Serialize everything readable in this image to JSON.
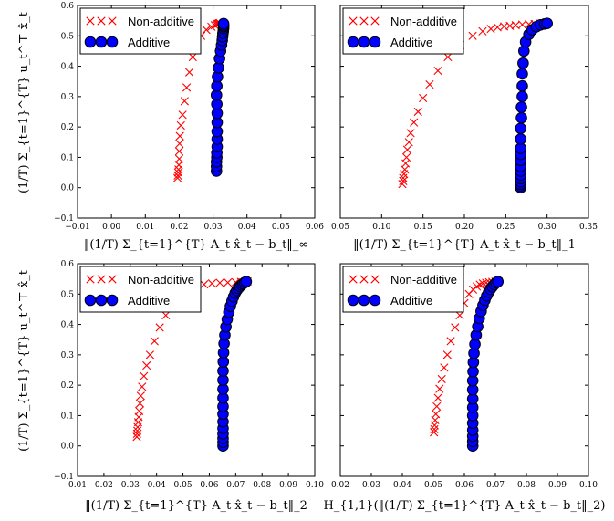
{
  "chart_data": [
    {
      "type": "scatter",
      "xlabel": "‖(1/T) Σ_{t=1}^{T} A_t x̂_t − b_t‖_∞",
      "ylabel": "(1/T) Σ_{t=1}^{T} u_t^⊤ x̂_t",
      "xlim": [
        -0.01,
        0.06
      ],
      "ylim": [
        -0.1,
        0.6
      ],
      "xticks": [
        "−0.01",
        "0.00",
        "0.01",
        "0.02",
        "0.03",
        "0.04",
        "0.05",
        "0.06"
      ],
      "yticks": [
        "−0.1",
        "0.0",
        "0.1",
        "0.2",
        "0.3",
        "0.4",
        "0.5",
        "0.6"
      ],
      "legend_position": "top-left",
      "series": [
        {
          "name": "Non-additive",
          "marker": "x",
          "color": "#ff0000",
          "x": [
            0.0195,
            0.0196,
            0.0197,
            0.0198,
            0.0199,
            0.02,
            0.02,
            0.0201,
            0.0202,
            0.0205,
            0.021,
            0.0216,
            0.0222,
            0.023,
            0.024,
            0.0252,
            0.0265,
            0.028,
            0.0295,
            0.0305,
            0.031,
            0.0313,
            0.0315,
            0.0318,
            0.032
          ],
          "y": [
            0.032,
            0.04,
            0.05,
            0.06,
            0.075,
            0.095,
            0.12,
            0.145,
            0.17,
            0.205,
            0.24,
            0.285,
            0.33,
            0.38,
            0.43,
            0.47,
            0.5,
            0.52,
            0.53,
            0.535,
            0.537,
            0.539,
            0.54,
            0.541,
            0.542
          ]
        },
        {
          "name": "Additive",
          "marker": "o",
          "color": "#0000ff",
          "x": [
            0.031,
            0.031,
            0.031,
            0.0311,
            0.0311,
            0.0312,
            0.0312,
            0.0312,
            0.0312,
            0.0312,
            0.0311,
            0.031,
            0.0311,
            0.0313,
            0.0316,
            0.0319,
            0.0322,
            0.0325,
            0.0327,
            0.0328,
            0.0329,
            0.033,
            0.0331,
            0.0331,
            0.0331,
            0.0331
          ],
          "y": [
            0.055,
            0.07,
            0.085,
            0.1,
            0.115,
            0.135,
            0.16,
            0.185,
            0.215,
            0.245,
            0.275,
            0.305,
            0.335,
            0.365,
            0.395,
            0.425,
            0.45,
            0.47,
            0.485,
            0.497,
            0.508,
            0.516,
            0.524,
            0.53,
            0.535,
            0.54
          ]
        }
      ]
    },
    {
      "type": "scatter",
      "xlabel": "‖(1/T) Σ_{t=1}^{T} A_t x̂_t − b_t‖_1",
      "ylabel": "",
      "xlim": [
        0.05,
        0.35
      ],
      "ylim": [
        -0.1,
        0.6
      ],
      "xticks": [
        "0.05",
        "0.10",
        "0.15",
        "0.20",
        "0.25",
        "0.30",
        "0.35"
      ],
      "yticks": [],
      "legend_position": "top-left",
      "series": [
        {
          "name": "Non-additive",
          "marker": "x",
          "color": "#ff0000",
          "x": [
            0.125,
            0.126,
            0.126,
            0.127,
            0.128,
            0.129,
            0.13,
            0.131,
            0.133,
            0.135,
            0.139,
            0.144,
            0.15,
            0.158,
            0.168,
            0.18,
            0.195,
            0.21,
            0.222,
            0.232,
            0.24,
            0.248,
            0.255,
            0.262,
            0.27,
            0.278,
            0.285,
            0.292,
            0.298
          ],
          "y": [
            0.012,
            0.022,
            0.032,
            0.045,
            0.06,
            0.08,
            0.1,
            0.125,
            0.15,
            0.18,
            0.215,
            0.25,
            0.295,
            0.34,
            0.385,
            0.43,
            0.47,
            0.5,
            0.515,
            0.523,
            0.528,
            0.531,
            0.533,
            0.535,
            0.537,
            0.538,
            0.539,
            0.54,
            0.541
          ]
        },
        {
          "name": "Additive",
          "marker": "o",
          "color": "#0000ff",
          "x": [
            0.268,
            0.268,
            0.268,
            0.268,
            0.268,
            0.268,
            0.268,
            0.268,
            0.268,
            0.268,
            0.268,
            0.268,
            0.268,
            0.269,
            0.269,
            0.27,
            0.27,
            0.27,
            0.271,
            0.272,
            0.274,
            0.278,
            0.282,
            0.287,
            0.292,
            0.297,
            0.3
          ],
          "y": [
            0.0,
            0.006,
            0.012,
            0.02,
            0.03,
            0.042,
            0.055,
            0.07,
            0.09,
            0.11,
            0.13,
            0.16,
            0.195,
            0.23,
            0.265,
            0.3,
            0.335,
            0.375,
            0.41,
            0.45,
            0.48,
            0.505,
            0.52,
            0.53,
            0.536,
            0.539,
            0.541
          ]
        }
      ]
    },
    {
      "type": "scatter",
      "xlabel": "‖(1/T) Σ_{t=1}^{T} A_t x̂_t − b_t‖_2",
      "ylabel": "(1/T) Σ_{t=1}^{T} u_t^⊤ x̂_t",
      "xlim": [
        0.01,
        0.1
      ],
      "ylim": [
        -0.1,
        0.6
      ],
      "xticks": [
        "0.01",
        "0.02",
        "0.03",
        "0.04",
        "0.05",
        "0.06",
        "0.07",
        "0.08",
        "0.09",
        "0.10"
      ],
      "yticks": [
        "−0.1",
        "0.0",
        "0.1",
        "0.2",
        "0.3",
        "0.4",
        "0.5",
        "0.6"
      ],
      "legend_position": "top-left",
      "series": [
        {
          "name": "Non-additive",
          "marker": "x",
          "color": "#ff0000",
          "x": [
            0.0325,
            0.0326,
            0.0327,
            0.0328,
            0.033,
            0.0332,
            0.0334,
            0.0337,
            0.034,
            0.0345,
            0.0352,
            0.0362,
            0.0375,
            0.0392,
            0.0412,
            0.0435,
            0.046,
            0.049,
            0.052,
            0.055,
            0.058,
            0.061,
            0.064,
            0.067,
            0.07,
            0.072,
            0.0735,
            0.0745
          ],
          "y": [
            0.03,
            0.04,
            0.05,
            0.062,
            0.078,
            0.095,
            0.115,
            0.14,
            0.165,
            0.195,
            0.23,
            0.265,
            0.3,
            0.345,
            0.39,
            0.43,
            0.47,
            0.5,
            0.518,
            0.527,
            0.532,
            0.535,
            0.537,
            0.538,
            0.539,
            0.54,
            0.541,
            0.542
          ]
        },
        {
          "name": "Additive",
          "marker": "o",
          "color": "#0000ff",
          "x": [
            0.0652,
            0.0652,
            0.0652,
            0.0652,
            0.0652,
            0.0652,
            0.0652,
            0.0652,
            0.0652,
            0.0652,
            0.0652,
            0.0652,
            0.0653,
            0.0654,
            0.0656,
            0.0659,
            0.0663,
            0.0668,
            0.0674,
            0.068,
            0.0686,
            0.0692,
            0.0698,
            0.0704,
            0.071,
            0.0716,
            0.0722,
            0.0728,
            0.0734,
            0.074
          ],
          "y": [
            0.0,
            0.012,
            0.025,
            0.04,
            0.058,
            0.08,
            0.105,
            0.13,
            0.158,
            0.187,
            0.217,
            0.247,
            0.277,
            0.307,
            0.337,
            0.365,
            0.392,
            0.417,
            0.44,
            0.46,
            0.477,
            0.491,
            0.503,
            0.512,
            0.519,
            0.525,
            0.53,
            0.534,
            0.538,
            0.541
          ]
        }
      ]
    },
    {
      "type": "scatter",
      "xlabel": "H_{1,1}(‖(1/T) Σ_{t=1}^{T} A_t x̂_t − b_t‖_2)",
      "ylabel": "",
      "xlim": [
        0.02,
        0.1
      ],
      "ylim": [
        -0.1,
        0.6
      ],
      "xticks": [
        "0.02",
        "0.03",
        "0.04",
        "0.05",
        "0.06",
        "0.07",
        "0.08",
        "0.09",
        "0.10"
      ],
      "yticks": [],
      "legend_position": "top-left",
      "series": [
        {
          "name": "Non-additive",
          "marker": "x",
          "color": "#ff0000",
          "x": [
            0.0502,
            0.0503,
            0.0504,
            0.0506,
            0.0508,
            0.0511,
            0.0515,
            0.052,
            0.0527,
            0.0535,
            0.0545,
            0.0556,
            0.057,
            0.0585,
            0.06,
            0.0615,
            0.0628,
            0.064,
            0.065,
            0.066,
            0.067,
            0.068,
            0.069,
            0.07,
            0.071
          ],
          "y": [
            0.045,
            0.055,
            0.068,
            0.085,
            0.105,
            0.13,
            0.158,
            0.188,
            0.22,
            0.258,
            0.3,
            0.345,
            0.39,
            0.43,
            0.47,
            0.5,
            0.515,
            0.525,
            0.531,
            0.535,
            0.537,
            0.539,
            0.54,
            0.541,
            0.542
          ]
        },
        {
          "name": "Additive",
          "marker": "o",
          "color": "#0000ff",
          "x": [
            0.0627,
            0.0627,
            0.0627,
            0.0627,
            0.0627,
            0.0627,
            0.0627,
            0.0627,
            0.0627,
            0.0627,
            0.0628,
            0.0629,
            0.0631,
            0.0634,
            0.0638,
            0.0643,
            0.0648,
            0.0654,
            0.066,
            0.0666,
            0.0672,
            0.0678,
            0.0684,
            0.069,
            0.0696,
            0.0702,
            0.0708
          ],
          "y": [
            0.0,
            0.015,
            0.032,
            0.052,
            0.075,
            0.1,
            0.127,
            0.155,
            0.185,
            0.215,
            0.245,
            0.275,
            0.305,
            0.335,
            0.365,
            0.393,
            0.42,
            0.443,
            0.463,
            0.48,
            0.494,
            0.506,
            0.516,
            0.524,
            0.531,
            0.537,
            0.541
          ]
        }
      ]
    }
  ]
}
